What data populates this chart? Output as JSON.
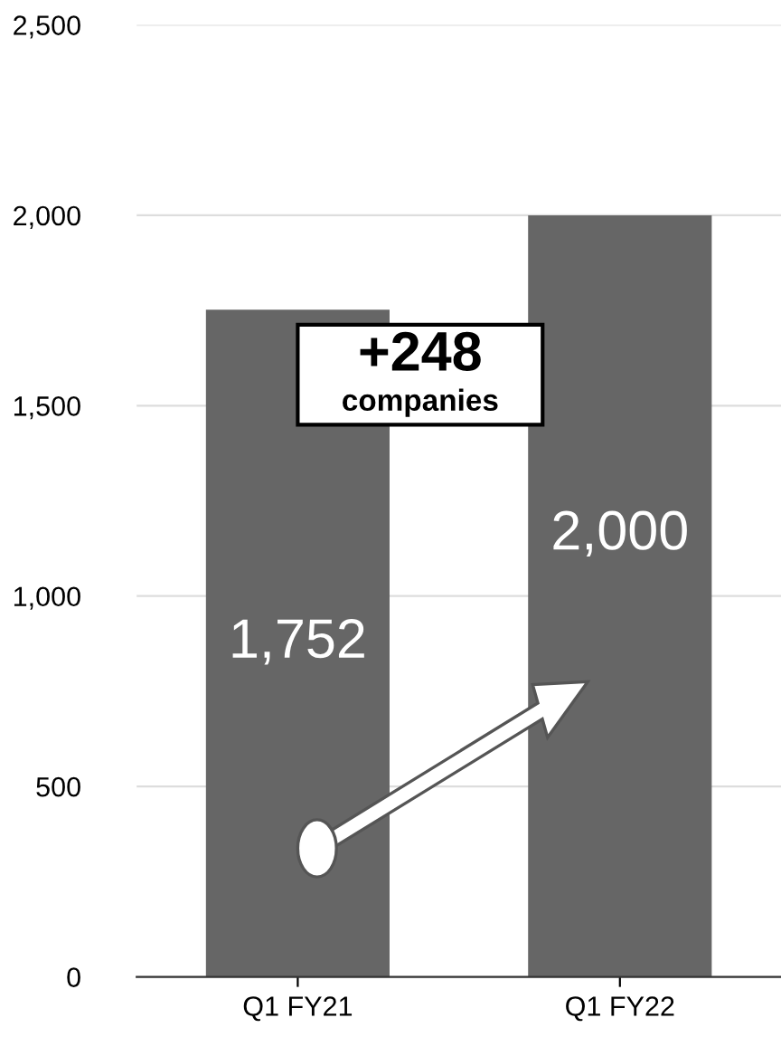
{
  "chart_data": {
    "type": "bar",
    "categories": [
      "Q1 FY21",
      "Q1 FY22"
    ],
    "values": [
      1752,
      2000
    ],
    "color": "#666666",
    "value_labels": [
      "1,752",
      "2,000"
    ],
    "ylim": [
      0,
      2500
    ],
    "yticks": [
      {
        "value": 0,
        "label": "0"
      },
      {
        "value": 500,
        "label": "500"
      },
      {
        "value": 1000,
        "label": "1,000"
      },
      {
        "value": 1500,
        "label": "1,500"
      },
      {
        "value": 2000,
        "label": "2,000"
      },
      {
        "value": 2500,
        "label": "2,500"
      }
    ],
    "grid": "y",
    "annotations": [
      "+248",
      "companies"
    ]
  }
}
